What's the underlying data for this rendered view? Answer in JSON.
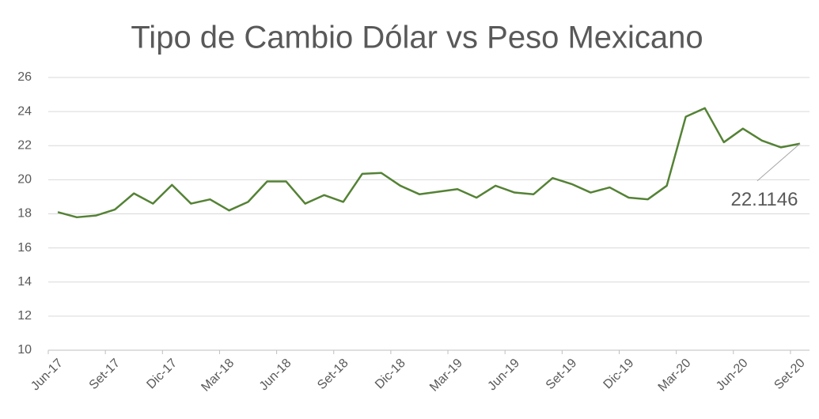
{
  "chart_data": {
    "type": "line",
    "title": "Tipo de Cambio Dólar vs Peso Mexicano",
    "categories": [
      "Jun-17",
      null,
      null,
      "Set-17",
      null,
      null,
      "Dic-17",
      null,
      null,
      "Mar-18",
      null,
      null,
      "Jun-18",
      null,
      null,
      "Set-18",
      null,
      null,
      "Dic-18",
      null,
      null,
      "Mar-19",
      null,
      null,
      "Jun-19",
      null,
      null,
      "Set-19",
      null,
      null,
      "Dic-19",
      null,
      null,
      "Mar-20",
      null,
      null,
      "Jun-20",
      null,
      null,
      "Set-20"
    ],
    "values": [
      18.1,
      17.8,
      17.9,
      18.25,
      19.2,
      18.6,
      19.7,
      18.6,
      18.85,
      18.2,
      18.7,
      19.9,
      19.9,
      18.6,
      19.1,
      18.7,
      20.35,
      20.4,
      19.65,
      19.15,
      19.3,
      19.45,
      18.95,
      19.65,
      19.25,
      19.15,
      20.1,
      19.75,
      19.25,
      19.55,
      18.95,
      18.85,
      19.65,
      23.7,
      24.2,
      22.2,
      23.0,
      22.3,
      21.9,
      22.1146
    ],
    "color": "#548235",
    "ylim": [
      10,
      26
    ],
    "yticks": [
      10,
      12,
      14,
      16,
      18,
      20,
      22,
      24,
      26
    ],
    "grid": true
  }
}
